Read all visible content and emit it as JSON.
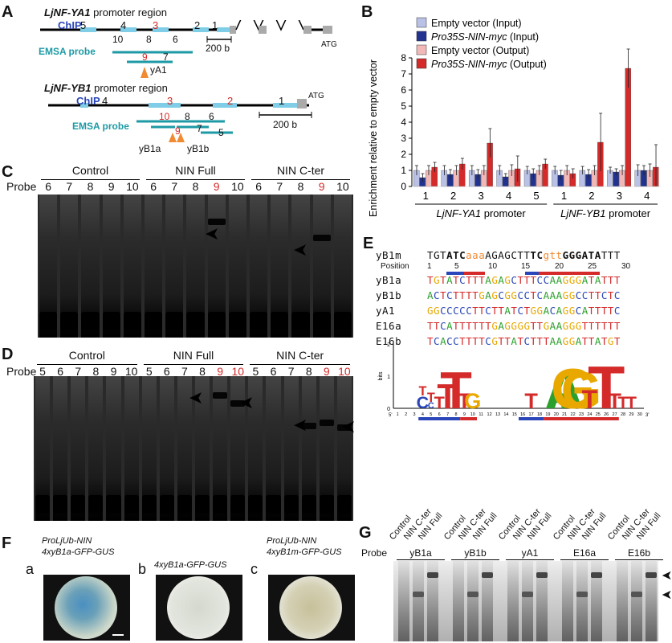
{
  "panels": {
    "a": "A",
    "b": "B",
    "c": "C",
    "d": "D",
    "e": "E",
    "f": "F",
    "g": "G"
  },
  "panelA": {
    "ya1_title_gene": "LjNF-YA1",
    "ya1_title_rest": "promoter region",
    "yb1_title_gene": "LjNF-YB1",
    "yb1_title_rest": "promoter region",
    "chip": "ChIP",
    "emsa_probe": "EMSA probe",
    "atg": "ATG",
    "scale": "200 b",
    "ya1_nums": [
      "5",
      "4",
      "3",
      "2",
      "1"
    ],
    "ya1_probes": [
      "10",
      "8",
      "6",
      "9",
      "7"
    ],
    "ya1_site": "yA1",
    "yb1_nums": [
      "4",
      "3",
      "2",
      "1"
    ],
    "yb1_probes": [
      "10",
      "8",
      "6",
      "9",
      "7",
      "5"
    ],
    "yb1_site_a": "yB1a",
    "yb1_site_b": "yB1b"
  },
  "chart_data": {
    "type": "bar",
    "ylabel": "Enrichment relative to empty vector",
    "ylim": [
      0,
      8
    ],
    "yticks": [
      0,
      1,
      2,
      3,
      4,
      5,
      6,
      7,
      8
    ],
    "categories": [
      "1",
      "2",
      "3",
      "4",
      "5",
      "1",
      "2",
      "3",
      "4"
    ],
    "groups": [
      {
        "label_gene": "LjNF-YA1",
        "label_rest": "promoter",
        "count": 5
      },
      {
        "label_gene": "LjNF-YB1",
        "label_rest": "promoter",
        "count": 4
      }
    ],
    "series": [
      {
        "name": "Empty vector (Input)",
        "color": "#b9c1e6",
        "values": [
          1.0,
          1.0,
          1.0,
          1.0,
          1.0,
          1.0,
          1.0,
          1.0,
          1.0
        ],
        "errors": [
          0.3,
          0.3,
          0.3,
          0.3,
          0.25,
          0.25,
          0.25,
          0.2,
          0.35
        ]
      },
      {
        "name": "Pro35S-NIN-myc (Input)",
        "color": "#22328f",
        "values": [
          0.55,
          0.75,
          0.75,
          0.6,
          0.8,
          0.7,
          0.75,
          0.9,
          1.0
        ],
        "errors": [
          0.25,
          0.3,
          0.3,
          0.2,
          0.3,
          0.3,
          0.3,
          0.2,
          0.3
        ]
      },
      {
        "name": "Empty vector (Output)",
        "color": "#f2b8b8",
        "values": [
          1.0,
          1.0,
          1.0,
          1.0,
          1.0,
          1.0,
          1.0,
          1.0,
          1.0
        ],
        "errors": [
          0.3,
          0.3,
          0.3,
          0.35,
          0.3,
          0.3,
          0.3,
          0.3,
          0.4
        ]
      },
      {
        "name": "Pro35S-NIN-myc (Output)",
        "color": "#d42a2a",
        "values": [
          1.2,
          1.4,
          2.7,
          1.1,
          1.4,
          0.8,
          2.75,
          7.35,
          1.2
        ],
        "errors": [
          0.3,
          0.35,
          0.9,
          0.8,
          0.3,
          0.3,
          1.8,
          1.2,
          1.4
        ]
      }
    ]
  },
  "panelC": {
    "groups": [
      "Control",
      "NIN Full",
      "NIN C-ter"
    ],
    "probe_label": "Probe",
    "lanes": [
      "6",
      "7",
      "8",
      "9",
      "10",
      "6",
      "7",
      "8",
      "9",
      "10",
      "6",
      "7",
      "8",
      "9",
      "10"
    ]
  },
  "panelD": {
    "groups": [
      "Control",
      "NIN Full",
      "NIN C-ter"
    ],
    "probe_label": "Probe",
    "lanes": [
      "5",
      "6",
      "7",
      "8",
      "9",
      "10",
      "5",
      "6",
      "7",
      "8",
      "9",
      "10",
      "5",
      "6",
      "7",
      "8",
      "9",
      "10"
    ]
  },
  "panelE": {
    "ref_name": "yB1m",
    "ref_seq": [
      "TGT",
      "ATC",
      "aaa",
      "AGAGCTT",
      "TC",
      "gtt",
      "GGGATA",
      "TTT"
    ],
    "position_label": "Position",
    "positions": [
      "1",
      "5",
      "10",
      "15",
      "20",
      "25",
      "30"
    ],
    "rows": [
      {
        "name": "yB1a",
        "seq": "TGTATCTTTAGAGCTTTCCAAGGGATATTT"
      },
      {
        "name": "yB1b",
        "seq": "ACTCTTTTGAGCGGCCTCAAAGGCCTTCTC"
      },
      {
        "name": "yA1",
        "seq": "GGCCCCCTTCTTATCTGGACAGGCATTTTC"
      },
      {
        "name": "E16a",
        "seq": "TTCATTTTTTGAGGGGTTGAAGGGTTTTTT"
      },
      {
        "name": "E16b",
        "seq": "TCACCTTTTCGTTATCTTTAAGGATTATGT"
      }
    ],
    "logo_ylabel": "bits",
    "logo_ticks": [
      "2",
      "1",
      "0"
    ],
    "logo_end5": "5'",
    "logo_end3": "3'"
  },
  "panelF": {
    "items": [
      {
        "letter": "a",
        "line1": "ProLjUb-NIN",
        "line2": "4xyB1a-GFP-GUS"
      },
      {
        "letter": "b",
        "line1": "",
        "line2": "4xyB1a-GFP-GUS"
      },
      {
        "letter": "c",
        "line1": "ProLjUb-NIN",
        "line2": "4xyB1m-GFP-GUS"
      }
    ]
  },
  "panelG": {
    "lane_labels": [
      "Control",
      "NIN C-ter",
      "NIN Full"
    ],
    "probe_label": "Probe",
    "probes": [
      "yB1a",
      "yB1b",
      "yA1",
      "E16a",
      "E16b"
    ]
  }
}
